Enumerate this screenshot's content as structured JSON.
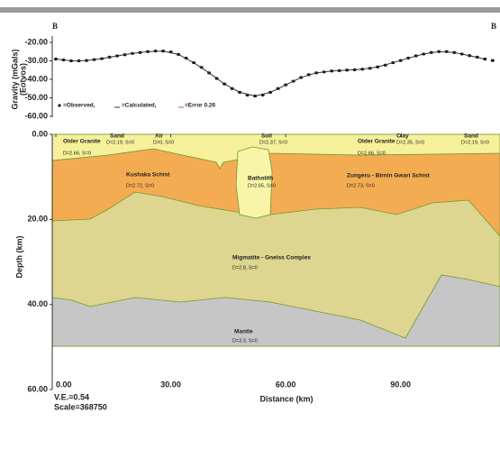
{
  "chart_data": [
    {
      "type": "line",
      "left_label": "B",
      "right_label": "B",
      "ylabel": [
        "Gravity (mGals)",
        "(Eotvos)"
      ],
      "xlim": [
        0,
        115
      ],
      "ylim": [
        -60,
        -20
      ],
      "yticks": [
        {
          "value": -20,
          "label": "-20.00"
        },
        {
          "value": -30,
          "label": "-30.00"
        },
        {
          "value": -40,
          "label": "-40.00"
        },
        {
          "value": -50,
          "label": "-50.00"
        },
        {
          "value": -60,
          "label": "-60.00"
        }
      ],
      "legend_extra": "=Error 0.26",
      "series": [
        {
          "name": "=Observed,",
          "color": "#111111",
          "style": "dots",
          "x": [
            0,
            2,
            4,
            6,
            8,
            10,
            12,
            14,
            16,
            18,
            20,
            22,
            24,
            26,
            28,
            30,
            32,
            34,
            36,
            38,
            40,
            42,
            44,
            46,
            48,
            50,
            52,
            54,
            56,
            58,
            60,
            62,
            64,
            66,
            68,
            70,
            72,
            74,
            76,
            78,
            80,
            82,
            84,
            86,
            88,
            90,
            92,
            94,
            96,
            98,
            100,
            102,
            104,
            106,
            108,
            110,
            112,
            114
          ],
          "values": [
            -29,
            -29.5,
            -30,
            -30,
            -29.8,
            -29.3,
            -28.8,
            -28,
            -27.3,
            -26.7,
            -26,
            -25.5,
            -25,
            -24.7,
            -24.7,
            -25.2,
            -26.5,
            -28.5,
            -31,
            -33.5,
            -36.5,
            -39.5,
            -42.5,
            -45,
            -47,
            -48.5,
            -49,
            -48.5,
            -47,
            -45,
            -43,
            -41,
            -39,
            -37.5,
            -36.5,
            -36,
            -35.5,
            -35.3,
            -35,
            -34.8,
            -34.5,
            -34,
            -33.3,
            -32.3,
            -31,
            -29.8,
            -28.5,
            -27.3,
            -26.3,
            -25.5,
            -25,
            -25,
            -25.5,
            -26.3,
            -27.2,
            -28,
            -29,
            -29.8
          ]
        },
        {
          "name": "=Calculated,",
          "color": "#333333",
          "style": "line",
          "x": [
            0,
            4,
            8,
            12,
            16,
            20,
            24,
            28,
            32,
            36,
            40,
            44,
            48,
            52,
            56,
            60,
            64,
            68,
            72,
            76,
            80,
            84,
            88,
            92,
            96,
            100,
            104,
            108,
            112
          ],
          "values": [
            -29,
            -30,
            -29.8,
            -28.8,
            -27.3,
            -26,
            -25,
            -24.7,
            -26.5,
            -31,
            -36.5,
            -42.5,
            -47,
            -49,
            -47,
            -43,
            -39,
            -36.5,
            -35.5,
            -35,
            -34.5,
            -33.3,
            -31,
            -28.5,
            -26.3,
            -25,
            -25.5,
            -27.2,
            -29
          ]
        }
      ]
    },
    {
      "type": "section",
      "ylabel": "Depth (km)",
      "xlabel": "Distance (km)",
      "xlim": [
        0,
        115
      ],
      "ylim": [
        0,
        60
      ],
      "xticks": [
        {
          "value": 0,
          "label": "0.00"
        },
        {
          "value": 30,
          "label": "30.00"
        },
        {
          "value": 60,
          "label": "60.00"
        },
        {
          "value": 90,
          "label": "90.00"
        }
      ],
      "yticks": [
        {
          "value": 0,
          "label": "0.00"
        },
        {
          "value": 20,
          "label": "20.00"
        },
        {
          "value": 40,
          "label": "40.00"
        },
        {
          "value": 60,
          "label": "60.00"
        }
      ],
      "layers": [
        {
          "name": "Older Granite",
          "density": "D=2.66, S=0"
        },
        {
          "name": "Sand",
          "density": "D=2.19, S=0"
        },
        {
          "name": "Air",
          "density": "D=0, S=0"
        },
        {
          "name": "Soil",
          "density": "D=2.37, S=0"
        },
        {
          "name": "Older Granite",
          "density": "D=2.66, S=0"
        },
        {
          "name": "Clay",
          "density": "D=2.35, S=0"
        },
        {
          "name": "Sand",
          "density": "D=2.19, S=0"
        },
        {
          "name": "Kushaka Schist",
          "density": "D=2.72, S=0"
        },
        {
          "name": "Batholith",
          "density": "D=2.65, S=0"
        },
        {
          "name": "Zungeru - Birnin Gwari Schist",
          "density": "D=2.73, S=0"
        },
        {
          "name": "Migmatite - Gneiss Complex",
          "density": "D=2.8, S=0"
        },
        {
          "name": "Mantle",
          "density": "D=3.3, S=0"
        }
      ],
      "notes": [
        "V.E.=0.54",
        "Scale=368750"
      ]
    }
  ]
}
